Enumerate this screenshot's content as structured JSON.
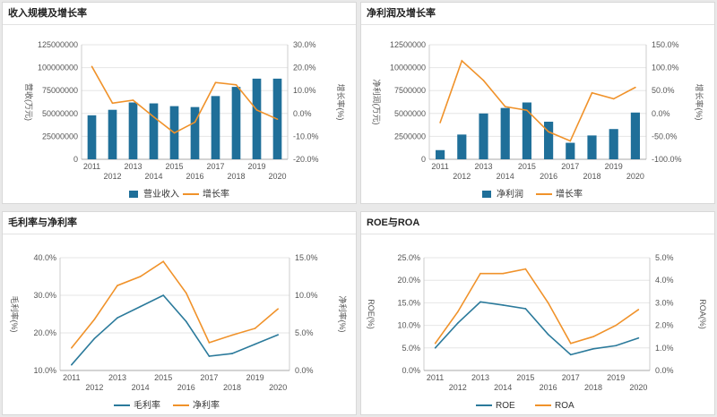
{
  "panels": [
    {
      "title": "收入规模及增长率"
    },
    {
      "title": "净利润及增长率"
    },
    {
      "title": "毛利率与净利率"
    },
    {
      "title": "ROE与ROA"
    }
  ],
  "colors": {
    "bar": "#1f6f99",
    "teal": "#2b7a9b",
    "orange": "#f0922a",
    "grid": "#e6e6e6",
    "axis": "#888888",
    "text": "#555555"
  },
  "chart_data": [
    {
      "type": "bar",
      "title": "收入规模及增长率",
      "categories": [
        "2011",
        "2012",
        "2013",
        "2014",
        "2015",
        "2016",
        "2017",
        "2018",
        "2019",
        "2020"
      ],
      "ylabel": "营收(万元)",
      "y2label": "增长率(%)",
      "ylim": [
        0,
        125000000
      ],
      "y2lim": [
        -20,
        30
      ],
      "yticks": [
        "0",
        "25000000",
        "50000000",
        "75000000",
        "100000000",
        "125000000"
      ],
      "y2ticks": [
        "-20.0%",
        "-10.0%",
        "0.0%",
        "10.0%",
        "20.0%",
        "30.0%"
      ],
      "series": [
        {
          "name": "营业收入",
          "kind": "bar",
          "axis": "left",
          "values": [
            48000000,
            54000000,
            62000000,
            61000000,
            58000000,
            57000000,
            69000000,
            79000000,
            88000000,
            88000000
          ]
        },
        {
          "name": "增长率",
          "kind": "line",
          "axis": "right",
          "values": [
            20.5,
            4.5,
            5.8,
            -1.5,
            -8.5,
            -3.8,
            13.5,
            12.5,
            1.5,
            -2.5
          ]
        }
      ],
      "legend": "bottom",
      "grid": true
    },
    {
      "type": "bar",
      "title": "净利润及增长率",
      "categories": [
        "2011",
        "2012",
        "2013",
        "2014",
        "2015",
        "2016",
        "2017",
        "2018",
        "2019",
        "2020"
      ],
      "ylabel": "净利润(万元)",
      "y2label": "增长率(%)",
      "ylim": [
        0,
        12500000
      ],
      "y2lim": [
        -100,
        150
      ],
      "yticks": [
        "0",
        "2500000",
        "5000000",
        "7500000",
        "10000000",
        "12500000"
      ],
      "y2ticks": [
        "-100.0%",
        "-50.0%",
        "0.0%",
        "50.0%",
        "100.0%",
        "150.0%"
      ],
      "series": [
        {
          "name": "净利润",
          "kind": "bar",
          "axis": "left",
          "values": [
            1000000,
            2700000,
            5000000,
            5600000,
            6200000,
            4100000,
            1800000,
            2600000,
            3300000,
            5100000
          ]
        },
        {
          "name": "增长率",
          "kind": "line",
          "axis": "right",
          "values": [
            -20,
            115,
            72,
            15,
            7,
            -40,
            -60,
            45,
            32,
            57
          ]
        }
      ],
      "legend": "bottom",
      "grid": true
    },
    {
      "type": "line",
      "title": "毛利率与净利率",
      "categories": [
        "2011",
        "2012",
        "2013",
        "2014",
        "2015",
        "2016",
        "2017",
        "2018",
        "2019",
        "2020"
      ],
      "ylabel": "毛利率(%)",
      "y2label": "净利率(%)",
      "ylim": [
        10,
        40
      ],
      "y2lim": [
        0,
        15
      ],
      "yticks": [
        "10.0%",
        "20.0%",
        "30.0%",
        "40.0%"
      ],
      "y2ticks": [
        "0.0%",
        "5.0%",
        "10.0%",
        "15.0%"
      ],
      "series": [
        {
          "name": "毛利率",
          "kind": "line",
          "axis": "left",
          "values": [
            11.5,
            18.5,
            24.0,
            27.0,
            30.0,
            23.0,
            13.8,
            14.5,
            17.0,
            19.5
          ]
        },
        {
          "name": "净利率",
          "kind": "line",
          "axis": "right",
          "values": [
            3.0,
            6.8,
            11.3,
            12.5,
            14.5,
            10.3,
            3.7,
            4.7,
            5.6,
            8.2
          ]
        }
      ],
      "legend": "bottom",
      "grid": true
    },
    {
      "type": "line",
      "title": "ROE与ROA",
      "categories": [
        "2011",
        "2012",
        "2013",
        "2014",
        "2015",
        "2016",
        "2017",
        "2018",
        "2019",
        "2020"
      ],
      "ylabel": "ROE(%)",
      "y2label": "ROA(%)",
      "ylim": [
        0,
        25
      ],
      "y2lim": [
        0,
        5
      ],
      "yticks": [
        "0.0%",
        "5.0%",
        "10.0%",
        "15.0%",
        "20.0%",
        "25.0%"
      ],
      "y2ticks": [
        "0.0%",
        "1.0%",
        "2.0%",
        "3.0%",
        "4.0%",
        "5.0%"
      ],
      "series": [
        {
          "name": "ROE",
          "kind": "line",
          "axis": "left",
          "values": [
            5.0,
            10.5,
            15.2,
            14.5,
            13.7,
            8.0,
            3.5,
            4.8,
            5.5,
            7.2
          ]
        },
        {
          "name": "ROA",
          "kind": "line",
          "axis": "right",
          "values": [
            1.2,
            2.6,
            4.3,
            4.3,
            4.5,
            3.0,
            1.2,
            1.5,
            2.0,
            2.7
          ]
        }
      ],
      "legend": "bottom",
      "grid": true
    }
  ]
}
